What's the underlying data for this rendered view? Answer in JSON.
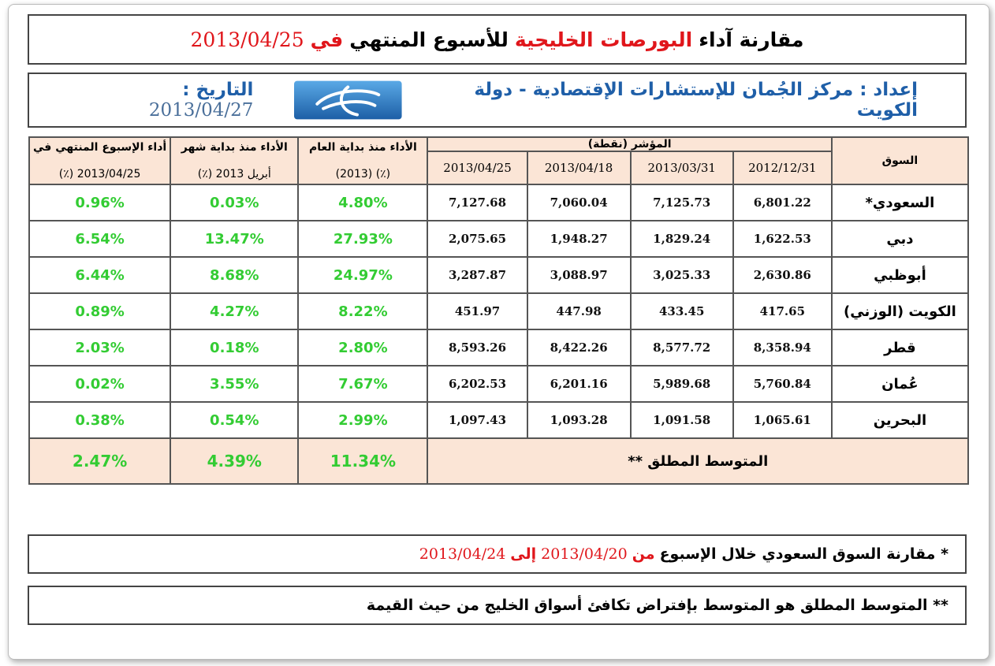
{
  "header": {
    "title_parts": [
      {
        "text": "مقارنة آداء",
        "color": "#000000"
      },
      {
        "text": "البورصات الخليجية",
        "color": "#e0161b"
      },
      {
        "text": "للأسبوع المنتهي",
        "color": "#000000"
      },
      {
        "text": "في",
        "color": "#e0161b"
      },
      {
        "text": "2013/04/25",
        "color": "#e0161b"
      }
    ],
    "prepared_by": "إعداد : مركز الجُمان للإستشارات الإقتصادية - دولة الكويت",
    "date_label": "التاريخ :",
    "date": "2013/04/27"
  },
  "table": {
    "headers": {
      "market": "السوق",
      "index": "المؤشر (نقطة)",
      "dates": [
        "2012/12/31",
        "2013/03/31",
        "2013/04/18",
        "2013/04/25"
      ],
      "ytd": [
        "الأداء منذ بداية العام",
        "(٪) (2013)"
      ],
      "mtd": [
        "الأداء منذ بداية شهر",
        "أبريل 2013 (٪)"
      ],
      "week": [
        "أداء الإسبوع المنتهي في",
        "2013/04/25 (٪)"
      ]
    },
    "rows": [
      [
        "السعودي*",
        "6,801.22",
        "7,125.73",
        "7,060.04",
        "7,127.68",
        "4.80%",
        "0.03%",
        "0.96%"
      ],
      [
        "دبي",
        "1,622.53",
        "1,829.24",
        "1,948.27",
        "2,075.65",
        "27.93%",
        "13.47%",
        "6.54%"
      ],
      [
        "أبوظبي",
        "2,630.86",
        "3,025.33",
        "3,088.97",
        "3,287.87",
        "24.97%",
        "8.68%",
        "6.44%"
      ],
      [
        "الكويت (الوزني)",
        "417.65",
        "433.45",
        "447.98",
        "451.97",
        "8.22%",
        "4.27%",
        "0.89%"
      ],
      [
        "قطر",
        "8,358.94",
        "8,577.72",
        "8,422.26",
        "8,593.26",
        "2.80%",
        "0.18%",
        "2.03%"
      ],
      [
        "عُمان",
        "5,760.84",
        "5,989.68",
        "6,201.16",
        "6,202.53",
        "7.67%",
        "3.55%",
        "0.02%"
      ],
      [
        "البحرين",
        "1,065.61",
        "1,091.58",
        "1,093.28",
        "1,097.43",
        "2.99%",
        "0.54%",
        "0.38%"
      ]
    ],
    "average": {
      "label": "المتوسط المطلق **",
      "ytd": "11.34%",
      "mtd": "4.39%",
      "week": "2.47%"
    }
  },
  "notes": [
    {
      "parts": [
        {
          "text": "* مقارنة السوق السعودي خلال الإسبوع",
          "color": "#000000"
        },
        {
          "text": "من",
          "color": "#e0161b"
        },
        {
          "text": "2013/04/20",
          "color": "#e0161b"
        },
        {
          "text": "إلى",
          "color": "#e0161b"
        },
        {
          "text": "2013/04/24",
          "color": "#e0161b"
        }
      ]
    },
    {
      "parts": [
        {
          "text": "** المتوسط المطلق هو المتوسط بإفتراض تكافئ أسواق الخليج من حيث القيمة",
          "color": "#000000"
        }
      ]
    }
  ]
}
